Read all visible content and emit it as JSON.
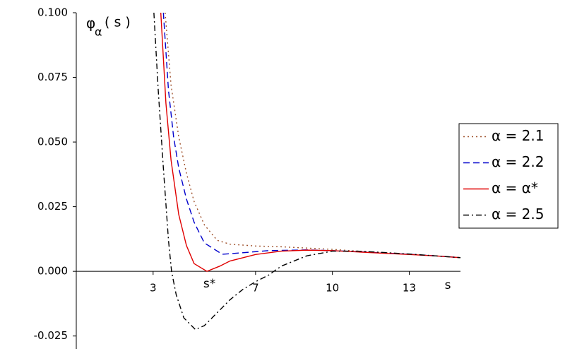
{
  "chart_data": {
    "type": "line",
    "ylabel": "φ",
    "ylabel_sub": "α",
    "ylabel_arg": "( s )",
    "xlabel": "s",
    "annotations": [
      {
        "text": "s*",
        "x": 5.2
      }
    ],
    "xlim": [
      0,
      15
    ],
    "ylim": [
      -0.03,
      0.1
    ],
    "xticks": [
      3,
      7,
      10,
      13
    ],
    "yticks": [
      {
        "value": -0.025,
        "label": "-0.025"
      },
      {
        "value": 0,
        "label": "0.000"
      },
      {
        "value": 0.025,
        "label": "0.025"
      },
      {
        "value": 0.05,
        "label": "0.050"
      },
      {
        "value": 0.075,
        "label": "0.075"
      },
      {
        "value": 0.1,
        "label": "0.100"
      }
    ],
    "legend": "right",
    "series": [
      {
        "name": "α = 2.1",
        "color": "#a0522d",
        "dash": "dotted",
        "x": [
          3.47,
          3.7,
          4,
          4.3,
          4.6,
          5,
          5.5,
          6,
          7,
          8,
          9,
          10,
          11,
          12,
          13,
          14,
          15
        ],
        "values": [
          0.1,
          0.072,
          0.052,
          0.038,
          0.027,
          0.018,
          0.012,
          0.0105,
          0.0098,
          0.0095,
          0.009,
          0.0085,
          0.0078,
          0.0072,
          0.0066,
          0.006,
          0.0053
        ]
      },
      {
        "name": "α = 2.2",
        "color": "#0000cc",
        "dash": "dashed",
        "x": [
          3.4,
          3.6,
          3.8,
          4,
          4.3,
          4.6,
          5,
          5.7,
          6.5,
          7.5,
          9,
          10,
          11,
          12,
          13,
          14,
          15
        ],
        "values": [
          0.1,
          0.07,
          0.052,
          0.04,
          0.028,
          0.019,
          0.011,
          0.0066,
          0.0072,
          0.008,
          0.0083,
          0.008,
          0.0076,
          0.0071,
          0.0066,
          0.006,
          0.0053
        ]
      },
      {
        "name": "α = α*",
        "color": "#e00000",
        "dash": "solid",
        "x": [
          3.3,
          3.5,
          3.7,
          4,
          4.3,
          4.6,
          5.1,
          5.6,
          6,
          7,
          8,
          9,
          10,
          11,
          12,
          13,
          14,
          15
        ],
        "values": [
          0.1,
          0.065,
          0.043,
          0.022,
          0.01,
          0.003,
          0,
          0.002,
          0.004,
          0.0065,
          0.0078,
          0.0082,
          0.008,
          0.0075,
          0.007,
          0.0065,
          0.006,
          0.0053
        ]
      },
      {
        "name": "α = 2.5",
        "color": "#000000",
        "dash": "dashdot",
        "x": [
          3.03,
          3.2,
          3.4,
          3.6,
          3.72,
          3.9,
          4.2,
          4.65,
          5,
          5.5,
          6,
          6.5,
          7,
          7.5,
          8,
          9,
          10,
          11,
          12,
          13,
          14,
          15
        ],
        "values": [
          0.1,
          0.07,
          0.04,
          0.012,
          0,
          -0.009,
          -0.018,
          -0.0225,
          -0.021,
          -0.016,
          -0.011,
          -0.007,
          -0.004,
          -0.0015,
          0.002,
          0.006,
          0.0078,
          0.0078,
          0.0073,
          0.0067,
          0.006,
          0.0053
        ]
      }
    ]
  }
}
